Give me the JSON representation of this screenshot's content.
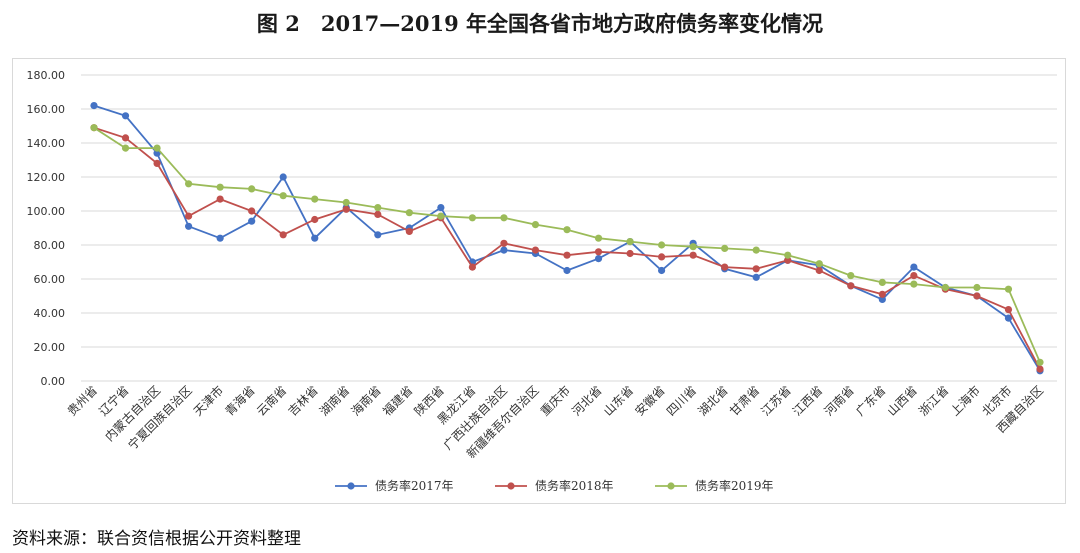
{
  "title": "图 2　2017—2019 年全国各省市地方政府债务率变化情况",
  "source": "资料来源：联合资信根据公开资料整理",
  "chart_data": {
    "type": "line",
    "ylim": [
      0,
      180
    ],
    "yticks": [
      "0.00",
      "20.00",
      "40.00",
      "60.00",
      "80.00",
      "100.00",
      "120.00",
      "140.00",
      "160.00",
      "180.00"
    ],
    "categories": [
      "贵州省",
      "辽宁省",
      "内蒙古自治区",
      "宁夏回族自治区",
      "天津市",
      "青海省",
      "云南省",
      "吉林省",
      "湖南省",
      "海南省",
      "福建省",
      "陕西省",
      "黑龙江省",
      "广西壮族自治区",
      "新疆维吾尔自治区",
      "重庆市",
      "河北省",
      "山东省",
      "安徽省",
      "四川省",
      "湖北省",
      "甘肃省",
      "江苏省",
      "江西省",
      "河南省",
      "广东省",
      "山西省",
      "浙江省",
      "上海市",
      "北京市",
      "西藏自治区"
    ],
    "series": [
      {
        "name": "债务率2017年",
        "color": "#4472c4",
        "values": [
          162,
          156,
          134,
          91,
          84,
          94,
          120,
          84,
          102,
          86,
          90,
          102,
          70,
          77,
          75,
          65,
          72,
          82,
          65,
          81,
          66,
          61,
          71,
          68,
          56,
          48,
          67,
          55,
          50,
          37,
          6
        ]
      },
      {
        "name": "债务率2018年",
        "color": "#c0504d",
        "values": [
          149,
          143,
          128,
          97,
          107,
          100,
          86,
          95,
          101,
          98,
          88,
          96,
          67,
          81,
          77,
          74,
          76,
          75,
          73,
          74,
          67,
          66,
          71,
          65,
          56,
          51,
          62,
          54,
          50,
          42,
          7
        ]
      },
      {
        "name": "债务率2019年",
        "color": "#9bbb59",
        "values": [
          149,
          137,
          137,
          116,
          114,
          113,
          109,
          107,
          105,
          102,
          99,
          97,
          96,
          96,
          92,
          89,
          84,
          82,
          80,
          79,
          78,
          77,
          74,
          69,
          62,
          58,
          57,
          55,
          55,
          54,
          11
        ]
      }
    ],
    "legend": "bottom"
  }
}
